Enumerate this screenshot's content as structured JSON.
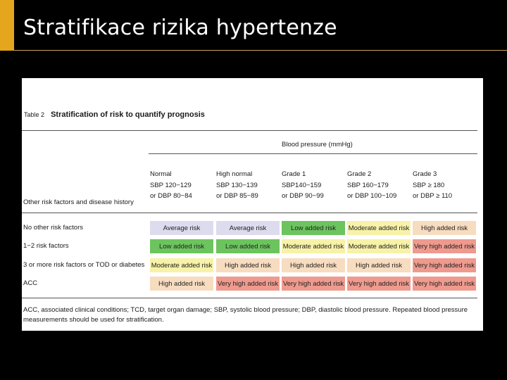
{
  "slide": {
    "title": "Stratifikace rizika hypertenze",
    "colors": {
      "background": "#000000",
      "accent": "#e3a61c",
      "title_text": "#ffffff"
    }
  },
  "document": {
    "table_number": "Table 2",
    "table_title": "Stratification of risk to quantify prognosis",
    "bp_header": "Blood pressure (mmHg)",
    "columns": [
      {
        "line1": "Normal",
        "line2": "SBP 120−129",
        "line3": "or DBP 80−84"
      },
      {
        "line1": "High normal",
        "line2": "SBP 130−139",
        "line3": "or DBP 85−89"
      },
      {
        "line1": "Grade 1",
        "line2": "SBP140−159",
        "line3": "or DBP 90−99"
      },
      {
        "line1": "Grade 2",
        "line2": "SBP 160−179",
        "line3": "or DBP 100−109"
      },
      {
        "line1": "Grade 3",
        "line2": "SBP ≥ 180",
        "line3": "or DBP ≥ 110"
      }
    ],
    "row_header": "Other risk factors and disease history",
    "rows": [
      {
        "label": "No other risk factors",
        "cells": [
          "Average risk",
          "Average risk",
          "Low added risk",
          "Moderate added risk",
          "High added risk"
        ]
      },
      {
        "label": "1−2 risk factors",
        "cells": [
          "Low added risk",
          "Low added risk",
          "Moderate added risk",
          "Moderate added risk",
          "Very high added risk"
        ]
      },
      {
        "label": "3 or more risk factors or TOD or diabetes",
        "cells": [
          "Moderate added risk",
          "High added risk",
          "High added risk",
          "High added risk",
          "Very high added risk"
        ]
      },
      {
        "label": "ACC",
        "cells": [
          "High added risk",
          "Very high added risk",
          "Very high added risk",
          "Very high added risk",
          "Very high added risk"
        ]
      }
    ],
    "risk_colors": {
      "Average risk": "#dcdcee",
      "Low added risk": "#6cc45e",
      "Moderate added risk": "#f7f2a8",
      "High added risk": "#f7dcc0",
      "Very high added risk": "#ef9a8e"
    },
    "footnote": "ACC, associated clinical conditions; TCD, target organ damage; SBP, systolic blood pressure; DBP, diastolic blood pressure. Repeated blood pressure measurements should be used for stratification."
  }
}
